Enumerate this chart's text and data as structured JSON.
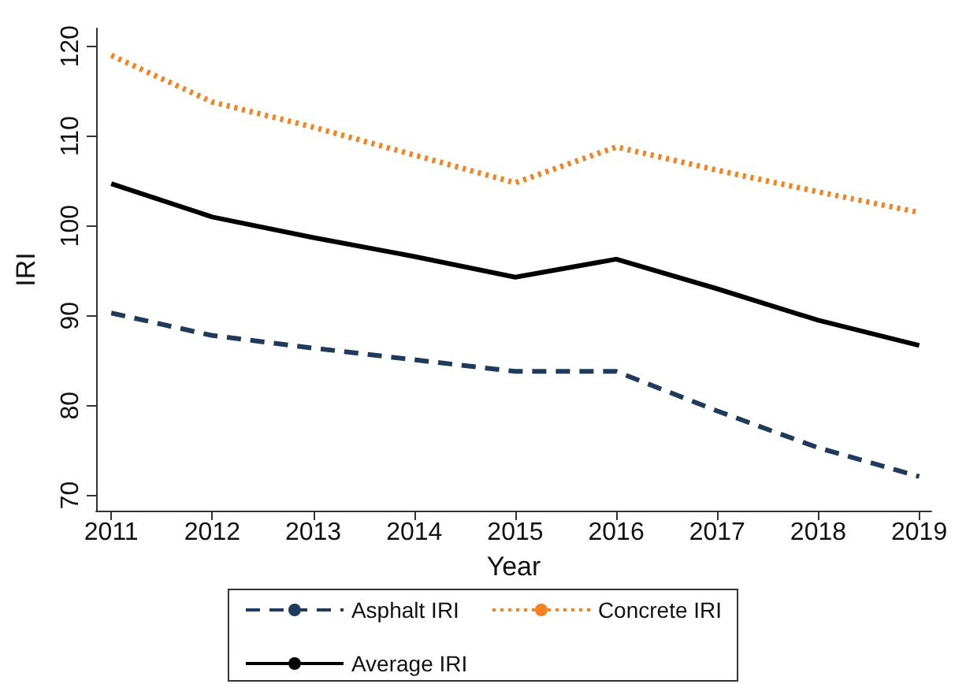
{
  "chart_data": {
    "type": "line",
    "xlabel": "Year",
    "ylabel": "IRI",
    "x": [
      2011,
      2012,
      2013,
      2014,
      2015,
      2016,
      2017,
      2018,
      2019
    ],
    "xlim": [
      2010.85,
      2019.12
    ],
    "xticks": [
      2011,
      2012,
      2013,
      2014,
      2015,
      2016,
      2017,
      2018,
      2019
    ],
    "ylim": [
      68.3,
      122
    ],
    "yticks": [
      70,
      80,
      90,
      100,
      110,
      120
    ],
    "series": [
      {
        "name": "Asphalt IRI",
        "color": "#1f3a5a",
        "line_style": "dashed",
        "values": [
          90.3,
          87.8,
          86.4,
          85.1,
          83.8,
          83.8,
          79.4,
          75.3,
          72.1
        ]
      },
      {
        "name": "Concrete IRI",
        "color": "#f58220",
        "line_style": "dotted",
        "values": [
          119.0,
          113.8,
          111.0,
          107.9,
          104.8,
          108.8,
          106.2,
          103.8,
          101.5
        ]
      },
      {
        "name": "Average IRI",
        "color": "#000000",
        "line_style": "solid",
        "values": [
          104.7,
          101.0,
          98.7,
          96.6,
          94.3,
          96.3,
          93.0,
          89.5,
          86.7
        ]
      }
    ],
    "grid": false,
    "legend": "bottom",
    "marker": "none"
  }
}
